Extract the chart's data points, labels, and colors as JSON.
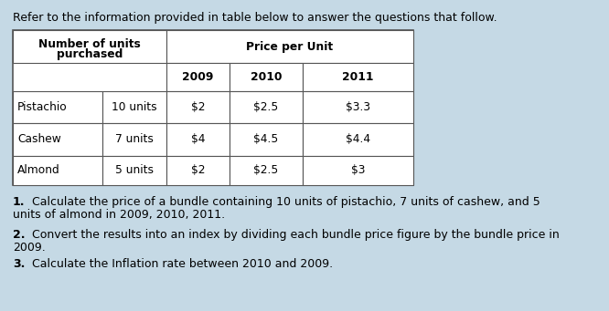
{
  "bg_color": "#c5d9e5",
  "header_text": "Refer to the information provided in table below to answer the questions that follow.",
  "header_fontsize": 9.0,
  "table_fontsize": 8.8,
  "question_fontsize": 9.0,
  "table": {
    "years": [
      "2009",
      "2010",
      "2011"
    ],
    "items": [
      "Pistachio",
      "Cashew",
      "Almond"
    ],
    "units": [
      "10 units",
      "7 units",
      "5 units"
    ],
    "prices_2009": [
      "$2",
      "$4",
      "$2"
    ],
    "prices_2010": [
      "$2.5",
      "$4.5",
      "$2.5"
    ],
    "prices_2011": [
      "$3.3",
      "$4.4",
      "$3"
    ]
  },
  "questions": [
    {
      "num": "1.",
      "line1": "   Calculate the price of a bundle containing 10 units of pistachio, 7 units of cashew, and 5",
      "line2": "units of almond in 2009, 2010, 2011."
    },
    {
      "num": "2.",
      "line1": "   Convert the results into an index by dividing each bundle price figure by the bundle price in",
      "line2": "2009."
    },
    {
      "num": "3.",
      "line1": "   Calculate the Inflation rate between 2010 and 2009.",
      "line2": ""
    }
  ]
}
